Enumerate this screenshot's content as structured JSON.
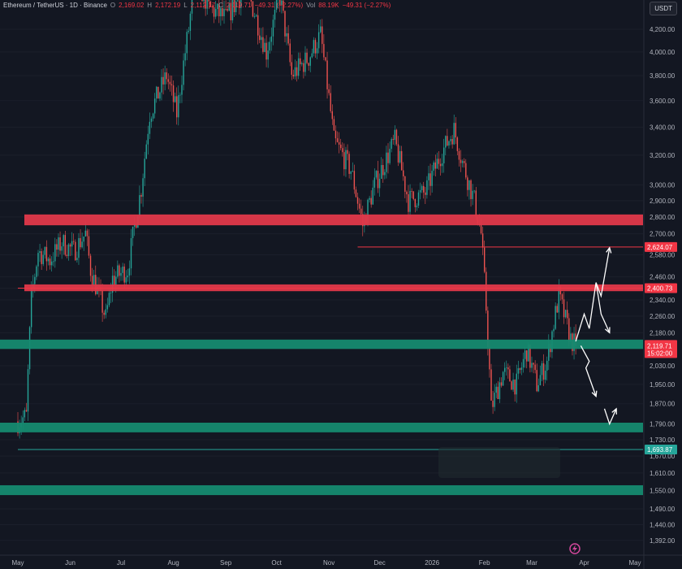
{
  "header": {
    "symbol": "Ethereum / TetherUS · 1D · Binance",
    "open_label": "O",
    "open": "2,169.02",
    "high_label": "H",
    "high": "2,172.19",
    "low_label": "L",
    "low": "2,112.17",
    "close_label": "C",
    "close": "2,119.71",
    "change": "−49.31 (−2.27%)",
    "vol_label": "Vol",
    "vol": "88.19K",
    "change2": "−49.31 (−2.27%)"
  },
  "unit": "USDT",
  "colors": {
    "background": "#131722",
    "up": "#26a69a",
    "down": "#ef5350",
    "resistance_zone": "#e0384a",
    "support_zone": "#158a70",
    "arrow": "#ffffff"
  },
  "chart_data": {
    "type": "candlestick",
    "title": "",
    "xlabel": "",
    "ylabel": "",
    "y_scale": "log",
    "ylim": [
      1360,
      4320
    ],
    "y_ticks": [
      1392,
      1440,
      1490,
      1550,
      1610,
      1670,
      1730,
      1790,
      1870,
      1950,
      2030,
      2110,
      2180,
      2260,
      2340,
      2400,
      2460,
      2580,
      2700,
      2800,
      2900,
      3000,
      3200,
      3400,
      3600,
      3800,
      4000,
      4200
    ],
    "y_tick_labels": [
      "1,392.00",
      "1,440.00",
      "1,490.00",
      "1,550.00",
      "1,610.00",
      "1,670.00",
      "1,730.00",
      "1,790.00",
      "1,870.00",
      "1,950.00",
      "2,030.00",
      "2,110.00",
      "2,180.00",
      "2,260.00",
      "2,340.00",
      "2,400.00",
      "2,460.00",
      "2,580.00",
      "2,700.00",
      "2,800.00",
      "2,900.00",
      "3,000.00",
      "3,200.00",
      "3,400.00",
      "3,600.00",
      "3,800.00",
      "4,000.00",
      "4,200.00"
    ],
    "x_ticks": [
      "May",
      "Jun",
      "Jul",
      "Aug",
      "Sep",
      "Oct",
      "Nov",
      "Dec",
      "2026",
      "Feb",
      "Mar",
      "Apr",
      "May"
    ],
    "price_path": [
      [
        "2025-05-01",
        1800
      ],
      [
        "2025-05-06",
        1820
      ],
      [
        "2025-05-09",
        2350
      ],
      [
        "2025-05-13",
        2600
      ],
      [
        "2025-05-20",
        2550
      ],
      [
        "2025-05-27",
        2650
      ],
      [
        "2025-06-03",
        2600
      ],
      [
        "2025-06-10",
        2700
      ],
      [
        "2025-06-13",
        2500
      ],
      [
        "2025-06-22",
        2250
      ],
      [
        "2025-06-26",
        2450
      ],
      [
        "2025-07-05",
        2500
      ],
      [
        "2025-07-10",
        2800
      ],
      [
        "2025-07-13",
        2980
      ],
      [
        "2025-07-18",
        3500
      ],
      [
        "2025-07-28",
        3800
      ],
      [
        "2025-08-03",
        3500
      ],
      [
        "2025-08-10",
        4200
      ],
      [
        "2025-08-14",
        4700
      ],
      [
        "2025-08-22",
        4400
      ],
      [
        "2025-09-01",
        4300
      ],
      [
        "2025-09-13",
        4600
      ],
      [
        "2025-09-25",
        4000
      ],
      [
        "2025-10-03",
        4500
      ],
      [
        "2025-10-10",
        3800
      ],
      [
        "2025-10-20",
        3950
      ],
      [
        "2025-10-27",
        4150
      ],
      [
        "2025-11-04",
        3300
      ],
      [
        "2025-11-14",
        3100
      ],
      [
        "2025-11-21",
        2750
      ],
      [
        "2025-11-28",
        3000
      ],
      [
        "2025-12-04",
        3150
      ],
      [
        "2025-12-10",
        3300
      ],
      [
        "2025-12-18",
        2900
      ],
      [
        "2025-12-28",
        2950
      ],
      [
        "2026-01-06",
        3200
      ],
      [
        "2026-01-14",
        3380
      ],
      [
        "2026-01-19",
        3150
      ],
      [
        "2026-01-26",
        2900
      ],
      [
        "2026-01-30",
        2700
      ],
      [
        "2026-02-02",
        2300
      ],
      [
        "2026-02-05",
        1850
      ],
      [
        "2026-02-12",
        2000
      ],
      [
        "2026-02-20",
        1950
      ],
      [
        "2026-02-26",
        2100
      ],
      [
        "2026-03-04",
        1950
      ],
      [
        "2026-03-10",
        2050
      ],
      [
        "2026-03-17",
        2360
      ],
      [
        "2026-03-24",
        2150
      ],
      [
        "2026-03-27",
        2119.71
      ]
    ],
    "zones": [
      {
        "kind": "resistance",
        "low": 2750,
        "high": 2815
      },
      {
        "kind": "resistance",
        "low": 2385,
        "high": 2420
      },
      {
        "kind": "support",
        "low": 2105,
        "high": 2148
      },
      {
        "kind": "support",
        "low": 1758,
        "high": 1795
      },
      {
        "kind": "support",
        "low": 1535,
        "high": 1568
      }
    ],
    "levels": [
      {
        "value": 2624.07,
        "label": "2,624.07",
        "color": "#f23645",
        "start": "2025-11-18"
      },
      {
        "value": 2400.73,
        "label": "2,400.73",
        "color": "#f23645",
        "start": "2025-05-01"
      },
      {
        "value": 1693.87,
        "label": "1,693.87",
        "color": "#26a69a",
        "start": "2025-05-01"
      }
    ],
    "last_price": {
      "value": 2119.71,
      "label": "2,119.71",
      "countdown": "15:02:00",
      "color": "#f23645"
    },
    "projections": [
      [
        [
          "2026-03-27",
          2140
        ],
        [
          "2026-04-01",
          2270
        ],
        [
          "2026-04-04",
          2200
        ],
        [
          "2026-04-08",
          2430
        ],
        [
          "2026-04-11",
          2360
        ],
        [
          "2026-04-16",
          2620
        ]
      ],
      [
        [
          "2026-04-08",
          2430
        ],
        [
          "2026-04-11",
          2270
        ],
        [
          "2026-04-16",
          2180
        ]
      ],
      [
        [
          "2026-03-30",
          2120
        ],
        [
          "2026-04-04",
          2050
        ],
        [
          "2026-04-02",
          2020
        ],
        [
          "2026-04-08",
          1900
        ]
      ],
      [
        [
          "2026-04-13",
          1850
        ],
        [
          "2026-04-16",
          1790
        ],
        [
          "2026-04-20",
          1850
        ]
      ]
    ]
  }
}
